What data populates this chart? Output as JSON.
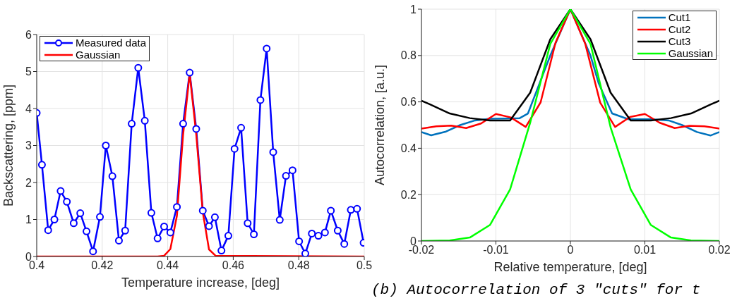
{
  "chart_data": [
    {
      "type": "line",
      "xlabel": "Temperature increase, [deg]",
      "ylabel": "Backscattering, [ppm]",
      "xlim": [
        0.4,
        0.5
      ],
      "xticks": [
        0.4,
        0.42,
        0.44,
        0.46,
        0.48,
        0.5
      ],
      "ylim": [
        0,
        6
      ],
      "yticks": [
        0,
        1,
        2,
        3,
        4,
        5,
        6
      ],
      "grid": true,
      "legend": "top left",
      "series": [
        {
          "name": "Measured data",
          "color": "#0000ff",
          "marker": "circle",
          "x": [
            0.4,
            0.4016,
            0.4035,
            0.4054,
            0.4073,
            0.4092,
            0.4113,
            0.4133,
            0.4152,
            0.4172,
            0.4193,
            0.4211,
            0.4231,
            0.4251,
            0.427,
            0.429,
            0.431,
            0.433,
            0.435,
            0.4369,
            0.4389,
            0.4408,
            0.4428,
            0.4447,
            0.4467,
            0.4487,
            0.4507,
            0.4526,
            0.4544,
            0.4564,
            0.4585,
            0.4604,
            0.4624,
            0.4644,
            0.4663,
            0.4683,
            0.4702,
            0.4722,
            0.4742,
            0.4761,
            0.4781,
            0.4801,
            0.482,
            0.484,
            0.486,
            0.488,
            0.4898,
            0.4919,
            0.4939,
            0.4959,
            0.4978,
            0.4998
          ],
          "values": [
            3.88,
            2.48,
            0.71,
            1.0,
            1.77,
            1.48,
            0.9,
            1.17,
            0.68,
            0.14,
            1.07,
            3.0,
            2.17,
            0.43,
            0.7,
            3.59,
            5.1,
            3.67,
            1.18,
            0.49,
            0.81,
            0.65,
            1.34,
            3.59,
            4.97,
            3.45,
            1.24,
            0.82,
            1.06,
            0.16,
            0.56,
            2.91,
            3.48,
            0.9,
            0.6,
            4.23,
            5.62,
            2.82,
            0.99,
            2.18,
            2.33,
            0.41,
            0.08,
            0.62,
            0.56,
            0.65,
            1.24,
            0.7,
            0.34,
            1.26,
            1.29,
            0.37
          ]
        },
        {
          "name": "Gaussian",
          "color": "#ff0000",
          "x": [
            0.4,
            0.4369,
            0.4389,
            0.4408,
            0.4428,
            0.4447,
            0.4467,
            0.4487,
            0.4507,
            0.4526,
            0.4546,
            0.5
          ],
          "values": [
            0,
            0,
            0.02,
            0.2,
            1.1,
            3.3,
            4.94,
            3.3,
            1.2,
            0.19,
            0.02,
            0
          ]
        }
      ]
    },
    {
      "type": "line",
      "xlabel": "Relative temperature, [deg]",
      "ylabel": "Autocorrelation, [a.u.]",
      "xlim": [
        -0.02,
        0.02
      ],
      "xticks": [
        -0.02,
        -0.01,
        0,
        0.01,
        0.02
      ],
      "ylim": [
        0,
        1
      ],
      "yticks": [
        0,
        0.2,
        0.4,
        0.6,
        0.8,
        1
      ],
      "grid": true,
      "legend": "top right",
      "annotations": [
        "(b) Autocorrelation of 3 \"cuts\" for t"
      ],
      "series": [
        {
          "name": "Cut1",
          "color": "#0072bd",
          "x": [
            -0.02,
            -0.0187,
            -0.0167,
            -0.0148,
            -0.0128,
            -0.0108,
            -0.0088,
            -0.0068,
            -0.0057,
            -0.0027,
            0,
            0.0027,
            0.0038,
            0.0056,
            0.0078,
            0.011,
            0.0132,
            0.015,
            0.017,
            0.0188,
            0.02
          ],
          "values": [
            0.47,
            0.456,
            0.472,
            0.5,
            0.52,
            0.527,
            0.528,
            0.53,
            0.55,
            0.8,
            1,
            0.8,
            0.68,
            0.55,
            0.525,
            0.525,
            0.52,
            0.5,
            0.47,
            0.455,
            0.47
          ]
        },
        {
          "name": "Cut2",
          "color": "#ff0000",
          "x": [
            -0.02,
            -0.018,
            -0.016,
            -0.014,
            -0.012,
            -0.01,
            -0.008,
            -0.006,
            -0.004,
            -0.002,
            0,
            0.002,
            0.004,
            0.006,
            0.008,
            0.01,
            0.012,
            0.014,
            0.016,
            0.018,
            0.02
          ],
          "values": [
            0.485,
            0.495,
            0.498,
            0.487,
            0.507,
            0.548,
            0.533,
            0.492,
            0.598,
            0.855,
            1,
            0.85,
            0.597,
            0.492,
            0.535,
            0.548,
            0.51,
            0.487,
            0.497,
            0.495,
            0.485
          ]
        },
        {
          "name": "Cut3",
          "color": "#000000",
          "x": [
            -0.02,
            -0.0189,
            -0.0162,
            -0.0135,
            -0.0108,
            -0.0081,
            -0.0054,
            -0.0027,
            0,
            0.0027,
            0.0054,
            0.0081,
            0.0108,
            0.0135,
            0.0162,
            0.0189,
            0.02
          ],
          "values": [
            0.605,
            0.59,
            0.55,
            0.53,
            0.52,
            0.52,
            0.64,
            0.87,
            1,
            0.87,
            0.64,
            0.52,
            0.52,
            0.53,
            0.55,
            0.59,
            0.605
          ]
        },
        {
          "name": "Gaussian",
          "color": "#00ff00",
          "x": [
            -0.02,
            -0.0162,
            -0.0135,
            -0.0108,
            -0.0081,
            -0.0054,
            -0.0027,
            0,
            0.0027,
            0.0054,
            0.0081,
            0.0108,
            0.0135,
            0.0162,
            0.02
          ],
          "values": [
            0,
            0.002,
            0.015,
            0.069,
            0.222,
            0.51,
            0.85,
            1,
            0.85,
            0.49,
            0.222,
            0.069,
            0.015,
            0.002,
            0
          ]
        }
      ]
    }
  ]
}
